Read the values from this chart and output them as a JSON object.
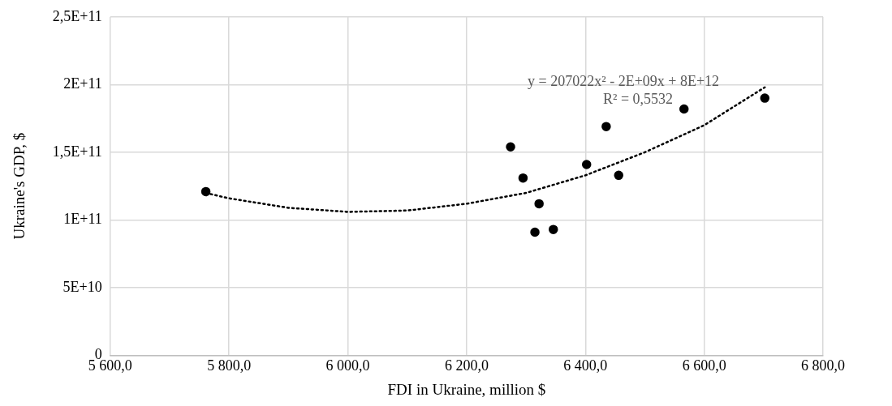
{
  "chart_data": {
    "type": "scatter",
    "xlabel": "FDI in Ukraine, million $",
    "ylabel": "Ukraine's GDP, $",
    "xlim": [
      5600,
      6800
    ],
    "xticks": [
      {
        "value": 5600,
        "label": "5 600,0"
      },
      {
        "value": 5800,
        "label": "5 800,0"
      },
      {
        "value": 6000,
        "label": "6 000,0"
      },
      {
        "value": 6200,
        "label": "6 200,0"
      },
      {
        "value": 6400,
        "label": "6 400,0"
      },
      {
        "value": 6600,
        "label": "6 600,0"
      },
      {
        "value": 6800,
        "label": "6 800,0"
      }
    ],
    "ylim": [
      0,
      250000000000
    ],
    "yticks": [
      0,
      {
        "value": 50000000000,
        "label": "5E+10"
      },
      {
        "value": 100000000000,
        "label": "1E+11"
      },
      {
        "value": 150000000000,
        "label": "1,5E+11"
      },
      {
        "value": 200000000000,
        "label": "2E+11"
      },
      {
        "value": 250000000000,
        "label": "2,5E+11"
      }
    ],
    "grid": true,
    "legend": false,
    "series": [
      {
        "type": "scatter",
        "color": "#000000",
        "marker": "circle",
        "x": [
          5761,
          6274,
          6295,
          6322,
          6315,
          6346,
          6402,
          6435,
          6456,
          6566,
          6702
        ],
        "values": [
          121000000000,
          154000000000,
          131000000000,
          112000000000,
          91000000000,
          93000000000,
          141000000000,
          169000000000,
          133000000000,
          182000000000,
          190000000000
        ]
      },
      {
        "type": "line",
        "color": "#000000",
        "marker": "none",
        "line_style": "dotted",
        "x": [
          5761,
          5800,
          5900,
          6000,
          6100,
          6200,
          6300,
          6400,
          6500,
          6600,
          6702
        ],
        "values": [
          120000000000,
          116000000000,
          109000000000,
          106000000000,
          107000000000,
          112000000000,
          120000000000,
          133000000000,
          150000000000,
          170000000000,
          198000000000
        ]
      }
    ],
    "annotations": [
      "y = 207022x² - 2E+09x + 8E+12",
      "R² = 0,5532"
    ]
  }
}
